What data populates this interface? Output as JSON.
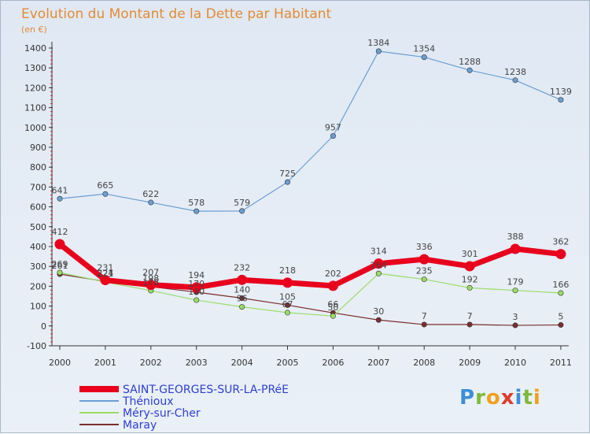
{
  "chart_data": {
    "type": "line",
    "title": "Evolution du Montant de la Dette par Habitant",
    "subtitle": "(en €)",
    "x": [
      "2000",
      "2001",
      "2002",
      "2003",
      "2004",
      "2005",
      "2006",
      "2007",
      "2008",
      "2009",
      "2010",
      "2011"
    ],
    "ylim": [
      -100,
      1400
    ],
    "yticks": [
      -100,
      0,
      100,
      200,
      300,
      400,
      500,
      600,
      700,
      800,
      900,
      1000,
      1100,
      1200,
      1300,
      1400
    ],
    "grid": false,
    "legend_position": "bottom-left",
    "series": [
      {
        "name": "SAINT-GEORGES-SUR-LA-PRéE",
        "color": "#e8001c",
        "values": [
          412,
          231,
          207,
          194,
          232,
          218,
          202,
          314,
          336,
          301,
          388,
          362
        ]
      },
      {
        "name": "Thénioux",
        "color": "#6a9fd4",
        "values": [
          641,
          665,
          622,
          578,
          579,
          725,
          957,
          1384,
          1354,
          1288,
          1238,
          1139
        ]
      },
      {
        "name": "Méry-sur-Cher",
        "color": "#99dd66",
        "values": [
          269,
          221,
          178,
          130,
          96,
          67,
          50,
          264,
          235,
          192,
          179,
          166
        ]
      },
      {
        "name": "Maray",
        "color": "#7a2e2e",
        "values": [
          261,
          224,
          198,
          170,
          140,
          105,
          66,
          30,
          7,
          7,
          3,
          5
        ]
      }
    ]
  },
  "logo": {
    "letters": [
      "P",
      "r",
      "o",
      "x",
      "i",
      "t",
      "i"
    ]
  }
}
